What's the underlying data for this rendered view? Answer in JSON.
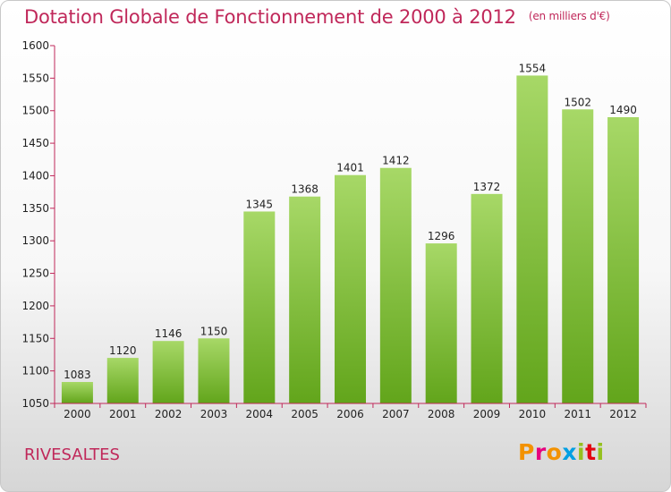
{
  "header": {
    "title": "Dotation Globale de Fonctionnement de 2000 à 2012",
    "unit": "(en milliers d'€)"
  },
  "footer": {
    "place": "RIVESALTES",
    "logo_letters": [
      "P",
      "r",
      "o",
      "x",
      "i",
      "t",
      "i"
    ],
    "logo_colors": [
      "#f39200",
      "#e6007e",
      "#f39200",
      "#009fe3",
      "#95c11f",
      "#e30613",
      "#95c11f"
    ]
  },
  "colors": {
    "bar_light": "#a7d867",
    "bar_dark": "#62a51b",
    "axis": "#c0285a",
    "text": "#c0285a"
  },
  "chart_data": {
    "type": "bar",
    "title": "Dotation Globale de Fonctionnement de 2000 à 2012",
    "subtitle": "(en milliers d'€)",
    "xlabel": "",
    "ylabel": "",
    "ylim": [
      1050,
      1600
    ],
    "yticks": [
      1050,
      1100,
      1150,
      1200,
      1250,
      1300,
      1350,
      1400,
      1450,
      1500,
      1550,
      1600
    ],
    "grid": false,
    "categories": [
      "2000",
      "2001",
      "2002",
      "2003",
      "2004",
      "2005",
      "2006",
      "2007",
      "2008",
      "2009",
      "2010",
      "2011",
      "2012"
    ],
    "values": [
      1083,
      1120,
      1146,
      1150,
      1345,
      1368,
      1401,
      1412,
      1296,
      1372,
      1554,
      1502,
      1490
    ]
  }
}
